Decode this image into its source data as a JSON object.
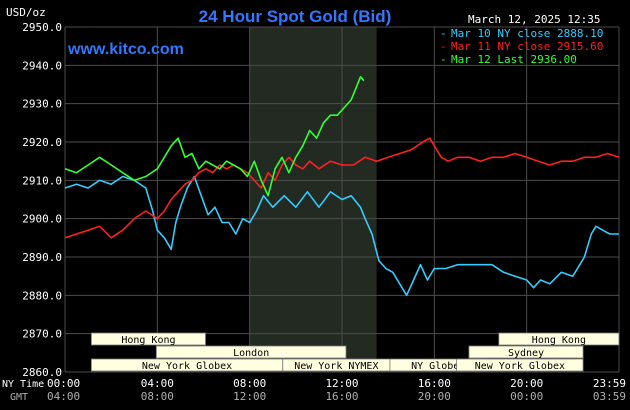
{
  "header": {
    "units": "USD/oz",
    "title": "24 Hour Spot Gold (Bid)",
    "datetime": "March 12, 2025 12:35",
    "site": "www.kitco.com"
  },
  "legend": [
    {
      "label": "Mar 10 NY close 2888.10",
      "color": "#33ccff"
    },
    {
      "label": "Mar 11 NY close 2915.60",
      "color": "#ff2020"
    },
    {
      "label": "Mar 12 Last 2936.00",
      "color": "#33ff33"
    }
  ],
  "sessions": [
    {
      "label": "Hong Kong",
      "start": 1.5,
      "end": 8.0,
      "row": 0
    },
    {
      "label": "London",
      "start": 5.2,
      "end": 16.0,
      "row": 1
    },
    {
      "label": "New York Globex",
      "start": 1.5,
      "end": 12.4,
      "row": 2
    },
    {
      "label": "New York NYMEX",
      "start": 12.4,
      "end": 18.5,
      "row": 2
    },
    {
      "label": "NY Globex",
      "start": 18.5,
      "end": 24.0,
      "row": 2
    },
    {
      "label": "Hong Kong",
      "start": 24.7,
      "end": 32.0,
      "row": 0
    },
    {
      "label": "Sydney",
      "start": 23.0,
      "end": 29.5,
      "row": 1
    },
    {
      "label": "New York Globex",
      "start": 22.3,
      "end": 29.5,
      "row": 2
    }
  ],
  "axis_labels": {
    "ny_time": "NY Time",
    "gmt": "GMT"
  },
  "colors": {
    "background": "#000000",
    "grid": "#4d4d4d",
    "shade": "#222a22",
    "title": "#3377ff",
    "text": "#ffffff",
    "gmt_text": "#b0b0b0",
    "session_fill": "#ffffe0",
    "session_text": "#000000"
  },
  "chart_data": {
    "type": "line",
    "ylim": [
      2860,
      2950
    ],
    "yticks": [
      2950.0,
      2940.0,
      2930.0,
      2920.0,
      2910.0,
      2900.0,
      2890.0,
      2880.0,
      2870.0,
      2860.0
    ],
    "xlim": [
      0,
      24
    ],
    "xticks_hours": [
      0,
      4,
      8,
      12,
      16,
      20,
      24
    ],
    "xtick_labels_ny": [
      "00:00",
      "04:00",
      "08:00",
      "12:00",
      "16:00",
      "20:00",
      "23:59"
    ],
    "xtick_labels_gmt": [
      "04:00",
      "08:00",
      "12:00",
      "16:00",
      "20:00",
      "00:00",
      "03:59"
    ],
    "highlight": [
      8.0,
      13.5
    ],
    "series": [
      {
        "name": "Mar 10 NY close 2888.10",
        "color": "#33ccff",
        "x": [
          0,
          0.5,
          1.0,
          1.5,
          2.0,
          2.5,
          3.0,
          3.5,
          3.8,
          4.0,
          4.3,
          4.6,
          4.8,
          5.0,
          5.3,
          5.6,
          5.9,
          6.2,
          6.5,
          6.8,
          7.1,
          7.4,
          7.7,
          8.0,
          8.3,
          8.6,
          9.0,
          9.5,
          10.0,
          10.5,
          11.0,
          11.5,
          12.0,
          12.4,
          12.8,
          13.0,
          13.3,
          13.6,
          13.9,
          14.2,
          14.5,
          14.8,
          15.1,
          15.4,
          15.7,
          16.0,
          16.5,
          17.0,
          17.5,
          18.0,
          18.5,
          19.0,
          19.5,
          20.0,
          20.3,
          20.6,
          21.0,
          21.5,
          22.0,
          22.5,
          22.8,
          23.0,
          23.3,
          23.6,
          24.0
        ],
        "values": [
          2908,
          2909,
          2908,
          2910,
          2909,
          2911,
          2910,
          2908,
          2902,
          2897,
          2895,
          2892,
          2899,
          2903,
          2908,
          2911,
          2906,
          2901,
          2903,
          2899,
          2899,
          2896,
          2900,
          2899,
          2902,
          2906,
          2903,
          2906,
          2903,
          2907,
          2903,
          2907,
          2905,
          2906,
          2903,
          2900,
          2896,
          2889,
          2887,
          2886,
          2883,
          2880,
          2884,
          2888,
          2884,
          2887,
          2887,
          2888,
          2888,
          2888,
          2888,
          2886,
          2885,
          2884,
          2882,
          2884,
          2883,
          2886,
          2885,
          2890,
          2896,
          2898,
          2897,
          2896,
          2896
        ]
      },
      {
        "name": "Mar 11 NY close 2915.60",
        "color": "#ff2020",
        "x": [
          0,
          0.5,
          1.0,
          1.5,
          2.0,
          2.5,
          3.0,
          3.5,
          4.0,
          4.3,
          4.6,
          4.9,
          5.2,
          5.5,
          5.8,
          6.1,
          6.4,
          6.7,
          7.0,
          7.3,
          7.6,
          7.9,
          8.2,
          8.5,
          8.8,
          9.1,
          9.4,
          9.7,
          10.0,
          10.3,
          10.6,
          11.0,
          11.5,
          12.0,
          12.5,
          13.0,
          13.5,
          14.0,
          14.5,
          15.0,
          15.5,
          15.8,
          16.0,
          16.3,
          16.6,
          17.0,
          17.5,
          18.0,
          18.5,
          19.0,
          19.5,
          20.0,
          20.5,
          21.0,
          21.5,
          22.0,
          22.5,
          23.0,
          23.5,
          24.0
        ],
        "values": [
          2895,
          2896,
          2897,
          2898,
          2895,
          2897,
          2900,
          2902,
          2900,
          2902,
          2905,
          2907,
          2909,
          2910,
          2912,
          2913,
          2912,
          2914,
          2913,
          2914,
          2913,
          2912,
          2910,
          2908,
          2912,
          2910,
          2914,
          2916,
          2914,
          2913,
          2915,
          2913,
          2915,
          2914,
          2914,
          2916,
          2915,
          2916,
          2917,
          2918,
          2920,
          2921,
          2919,
          2916,
          2915,
          2916,
          2916,
          2915,
          2916,
          2916,
          2917,
          2916,
          2915,
          2914,
          2915,
          2915,
          2916,
          2916,
          2917,
          2916
        ]
      },
      {
        "name": "Mar 12 Last 2936.00",
        "color": "#33ff33",
        "x": [
          0,
          0.5,
          1.0,
          1.5,
          2.0,
          2.5,
          3.0,
          3.5,
          4.0,
          4.3,
          4.6,
          4.9,
          5.2,
          5.5,
          5.8,
          6.1,
          6.4,
          6.7,
          7.0,
          7.3,
          7.6,
          7.9,
          8.2,
          8.5,
          8.8,
          9.1,
          9.4,
          9.7,
          10.0,
          10.3,
          10.6,
          10.9,
          11.2,
          11.5,
          11.8,
          12.1,
          12.4,
          12.6,
          12.8,
          12.95
        ],
        "values": [
          2913,
          2912,
          2914,
          2916,
          2914,
          2912,
          2910,
          2911,
          2913,
          2916,
          2919,
          2921,
          2916,
          2917,
          2913,
          2915,
          2914,
          2913,
          2915,
          2914,
          2913,
          2911,
          2915,
          2910,
          2906,
          2913,
          2916,
          2912,
          2916,
          2919,
          2923,
          2921,
          2925,
          2927,
          2927,
          2929,
          2931,
          2934,
          2937,
          2936
        ]
      }
    ]
  }
}
